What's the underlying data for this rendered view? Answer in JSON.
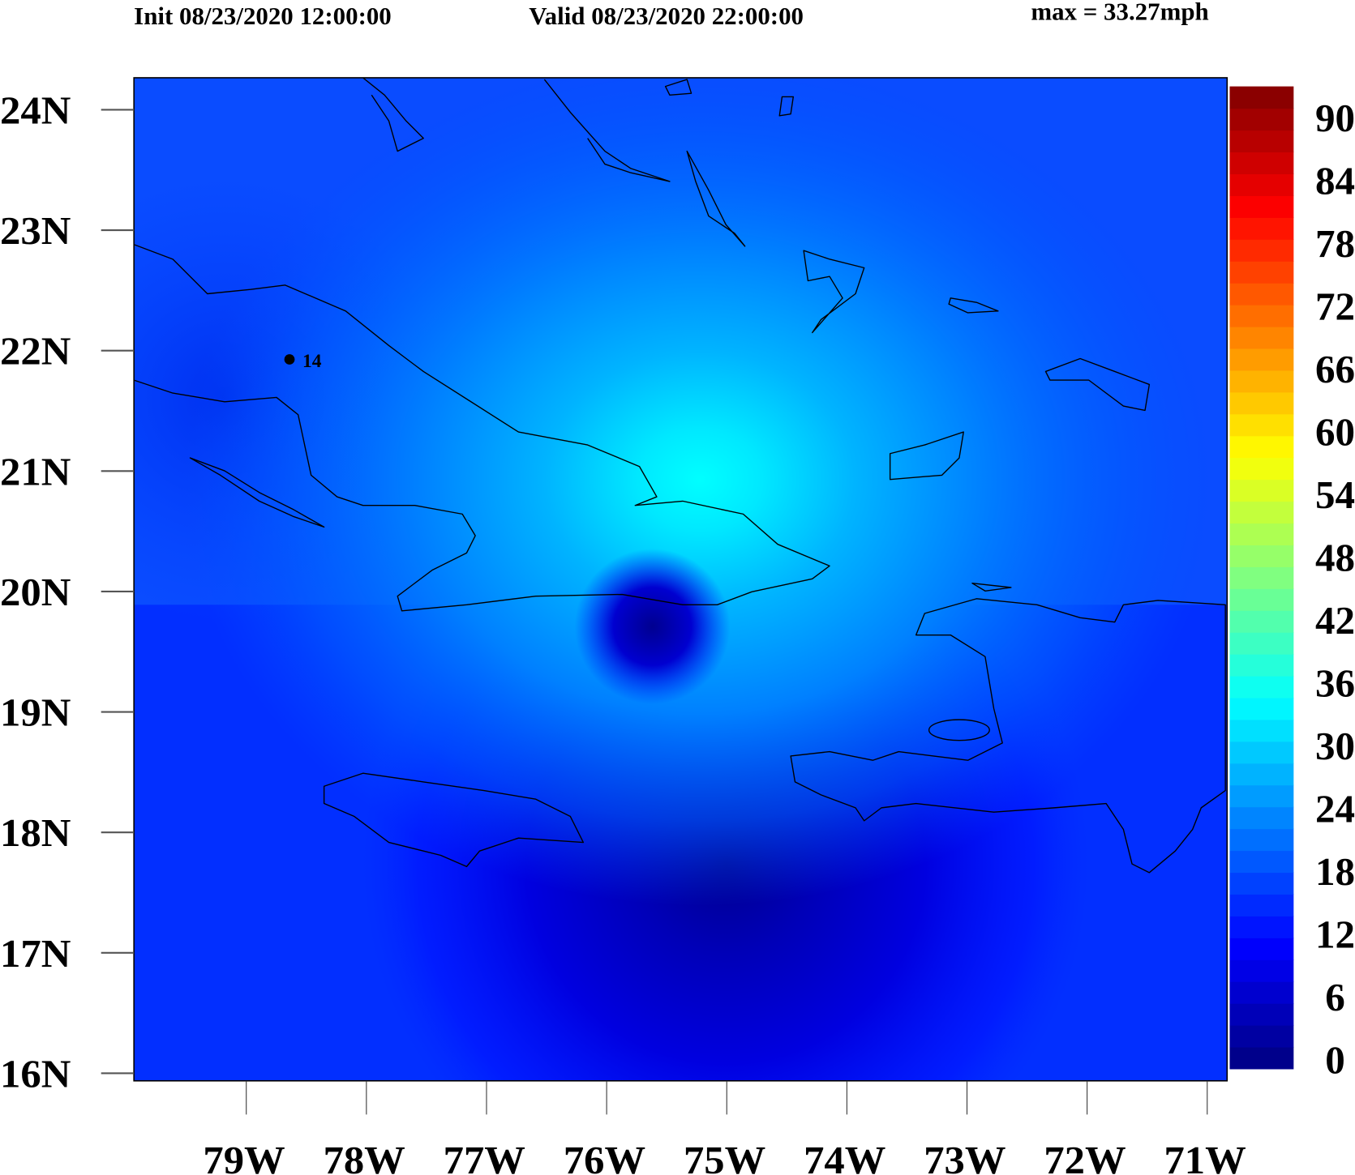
{
  "header": {
    "init": "Init 08/23/2020 12:00:00",
    "valid": "Valid 08/23/2020 22:00:00",
    "max": "max = 33.27mph"
  },
  "map": {
    "lat_labels": [
      "24N",
      "23N",
      "22N",
      "21N",
      "20N",
      "19N",
      "18N",
      "17N",
      "16N"
    ],
    "lon_labels": [
      "79W",
      "78W",
      "77W",
      "76W",
      "75W",
      "74W",
      "73W",
      "72W",
      "71W"
    ],
    "station": {
      "label": "14"
    }
  },
  "colorbar": {
    "labels": [
      "90",
      "84",
      "78",
      "72",
      "66",
      "60",
      "54",
      "48",
      "42",
      "36",
      "30",
      "24",
      "18",
      "12",
      "6",
      "0"
    ],
    "colormap": "jet",
    "min": 0,
    "max": 90
  }
}
